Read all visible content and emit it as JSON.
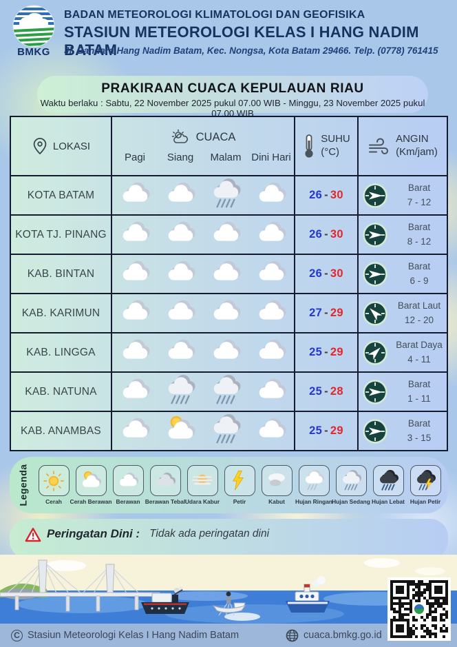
{
  "header": {
    "agency": "BADAN METEOROLOGI KLIMATOLOGI DAN GEOFISIKA",
    "station": "STASIUN METEOROLOGI KELAS I HANG NADIM BATAM",
    "address": "Jl. Bandara Hang Nadim Batam, Kec. Nongsa, Kota Batam 29466.  Telp. (0778) 761415",
    "logo_text": "BMKG"
  },
  "banner": {
    "title": "PRAKIRAAN CUACA KEPULAUAN RIAU",
    "validity": "Waktu berlaku : Sabtu, 22 November 2025 pukul 07.00 WIB - Minggu, 23 November 2025 pukul 07.00 WIB"
  },
  "table": {
    "columns": {
      "location": "LOKASI",
      "weather": "CUACA",
      "weather_times": [
        "Pagi",
        "Siang",
        "Malam",
        "Dini Hari"
      ],
      "temp_title": "SUHU",
      "temp_unit": "(°C)",
      "wind_title": "ANGIN",
      "wind_unit": "(Km/jam)"
    },
    "rows": [
      {
        "location": "KOTA BATAM",
        "icons": [
          "berawan",
          "berawan",
          "hujan-sedang",
          "berawan"
        ],
        "temp_min": "26",
        "temp_max": "30",
        "wind_dir": "Barat",
        "wind_speed": "7 - 12",
        "arrow_deg": 0
      },
      {
        "location": "KOTA TJ. PINANG",
        "icons": [
          "berawan",
          "berawan",
          "berawan",
          "berawan"
        ],
        "temp_min": "26",
        "temp_max": "30",
        "wind_dir": "Barat",
        "wind_speed": "8 - 12",
        "arrow_deg": 0
      },
      {
        "location": "KAB. BINTAN",
        "icons": [
          "berawan",
          "berawan",
          "berawan",
          "berawan"
        ],
        "temp_min": "26",
        "temp_max": "30",
        "wind_dir": "Barat",
        "wind_speed": "6 - 9",
        "arrow_deg": 0
      },
      {
        "location": "KAB. KARIMUN",
        "icons": [
          "berawan",
          "berawan",
          "berawan",
          "berawan"
        ],
        "temp_min": "27",
        "temp_max": "29",
        "wind_dir": "Barat Laut",
        "wind_speed": "12 - 20",
        "arrow_deg": 225
      },
      {
        "location": "KAB. LINGGA",
        "icons": [
          "berawan",
          "berawan",
          "berawan",
          "berawan"
        ],
        "temp_min": "25",
        "temp_max": "29",
        "wind_dir": "Barat Daya",
        "wind_speed": "4 - 11",
        "arrow_deg": 315
      },
      {
        "location": "KAB. NATUNA",
        "icons": [
          "berawan",
          "hujan-sedang",
          "hujan-sedang",
          "berawan"
        ],
        "temp_min": "25",
        "temp_max": "28",
        "wind_dir": "Barat",
        "wind_speed": "1 - 11",
        "arrow_deg": 0
      },
      {
        "location": "KAB. ANAMBAS",
        "icons": [
          "berawan",
          "cerah-berawan",
          "hujan-sedang",
          "berawan"
        ],
        "temp_min": "25",
        "temp_max": "29",
        "wind_dir": "Barat",
        "wind_speed": "3 - 15",
        "arrow_deg": 0
      }
    ],
    "temp_separator": "-"
  },
  "legend": {
    "label": "Legenda",
    "items": [
      {
        "name": "Cerah",
        "icon": "cerah"
      },
      {
        "name": "Cerah Berawan",
        "icon": "cerah-berawan"
      },
      {
        "name": "Berawan",
        "icon": "berawan"
      },
      {
        "name": "Berawan Tebal",
        "icon": "berawan-tebal"
      },
      {
        "name": "Udara Kabur",
        "icon": "udara-kabur"
      },
      {
        "name": "Petir",
        "icon": "petir"
      },
      {
        "name": "Kabut",
        "icon": "kabut"
      },
      {
        "name": "Hujan Ringan",
        "icon": "hujan-ringan"
      },
      {
        "name": "Hujan Sedang",
        "icon": "hujan-sedang"
      },
      {
        "name": "Hujan Lebat",
        "icon": "hujan-lebat"
      },
      {
        "name": "Hujan Petir",
        "icon": "hujan-petir"
      }
    ]
  },
  "warning": {
    "label": "Peringatan Dini :",
    "text": "Tidak ada peringatan dini"
  },
  "footer": {
    "copyright": "Stasiun Meteorologi Kelas I Hang Nadim Batam",
    "website": "cuaca.bmkg.go.id"
  },
  "colors": {
    "temp_min": "#2438cf",
    "temp_max": "#e3262b",
    "navy": "#16335f",
    "compass_bg": "#17433e",
    "table_border": "#141b2e"
  }
}
